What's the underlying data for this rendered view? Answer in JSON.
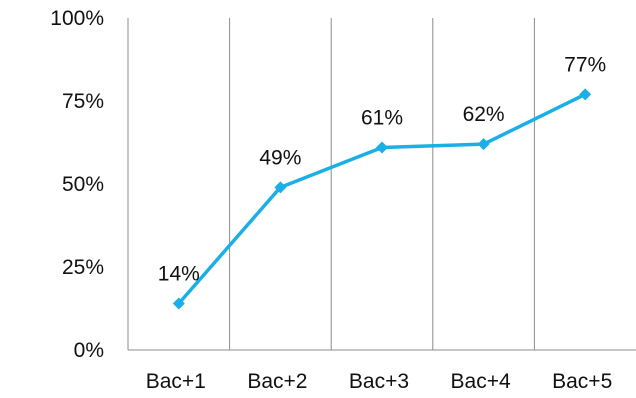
{
  "chart_data": {
    "type": "line",
    "title": "",
    "xlabel": "",
    "ylabel": "",
    "categories": [
      "Bac+1",
      "Bac+2",
      "Bac+3",
      "Bac+4",
      "Bac+5"
    ],
    "series": [
      {
        "values": [
          14,
          49,
          61,
          62,
          77
        ],
        "data_labels": [
          "14%",
          "49%",
          "61%",
          "62%",
          "77%"
        ],
        "color": "#1aafe6",
        "marker": "diamond"
      }
    ],
    "y_ticks": [
      0,
      25,
      50,
      75,
      100
    ],
    "y_tick_labels": [
      "0%",
      "25%",
      "50%",
      "75%",
      "100%"
    ],
    "ylim": [
      0,
      100
    ],
    "vertical_gridlines": true,
    "horizontal_gridlines": false,
    "legend": "none"
  }
}
